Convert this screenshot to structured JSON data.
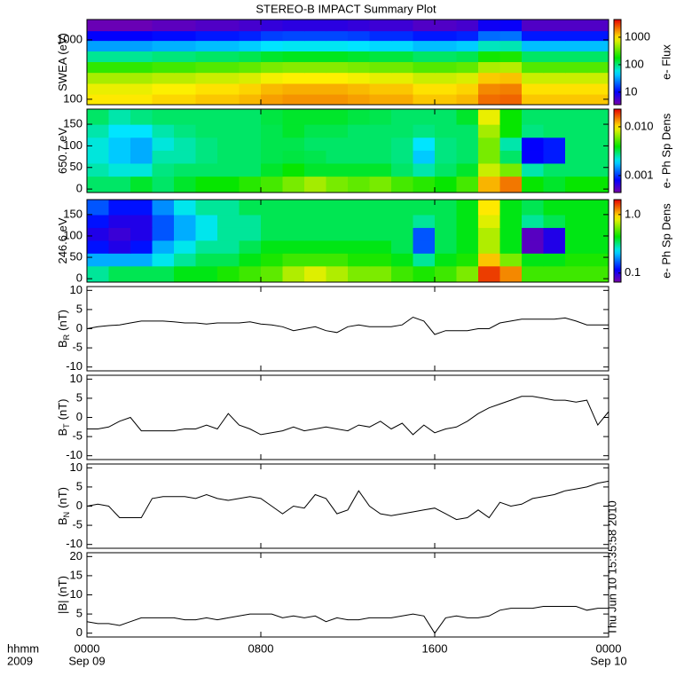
{
  "chart_data": [
    {
      "type": "heatmap",
      "title": "STEREO-B IMPACT Summary Plot",
      "ylabel": "SWEA (eV)",
      "ylog": true,
      "x": [
        0.5,
        1.5,
        2.5,
        3.5,
        4.5,
        5.5,
        6.5,
        7.5,
        8.5,
        9.5,
        10.5,
        11.5,
        12.5,
        13.5,
        14.5,
        15.5,
        16.5,
        17.5,
        18.5,
        19.5,
        20.5,
        21.5,
        22.5,
        23.5
      ],
      "y": [
        100,
        150,
        230,
        350,
        530,
        800,
        1200,
        1700
      ],
      "z": [
        [
          960,
          960,
          960,
          1080,
          1080,
          1200,
          1200,
          1320,
          1560,
          1680,
          1680,
          1680,
          1560,
          1440,
          1440,
          1200,
          1200,
          1320,
          2160,
          2280,
          1200,
          1200,
          1200,
          1200
        ],
        [
          800,
          800,
          800,
          900,
          900,
          1000,
          1000,
          1100,
          1300,
          1400,
          1400,
          1400,
          1300,
          1200,
          1200,
          1000,
          1000,
          1100,
          1800,
          1900,
          1000,
          1000,
          1000,
          1000
        ],
        [
          520,
          520,
          520,
          585,
          585,
          650,
          650,
          715,
          845,
          910,
          910,
          910,
          845,
          780,
          780,
          650,
          650,
          715,
          1170,
          1235,
          650,
          650,
          650,
          650
        ],
        [
          240,
          240,
          240,
          270,
          270,
          300,
          300,
          330,
          390,
          420,
          420,
          420,
          390,
          360,
          360,
          300,
          300,
          330,
          540,
          570,
          300,
          300,
          300,
          300
        ],
        [
          88,
          88,
          88,
          99,
          99,
          110,
          110,
          121,
          143,
          154,
          154,
          154,
          143,
          132,
          132,
          110,
          110,
          121,
          198,
          209,
          110,
          110,
          110,
          110
        ],
        [
          32,
          32,
          32,
          36,
          36,
          40,
          40,
          44,
          52,
          56,
          56,
          56,
          52,
          48,
          48,
          40,
          40,
          44,
          72,
          76,
          40,
          40,
          40,
          40
        ],
        [
          10,
          10,
          10,
          11,
          11,
          12,
          12,
          13,
          16,
          17,
          17,
          17,
          16,
          14,
          14,
          12,
          12,
          13,
          22,
          23,
          12,
          12,
          12,
          12
        ],
        [
          4,
          4,
          4,
          4.5,
          4.5,
          5,
          5,
          5.5,
          6.5,
          7,
          7,
          7,
          6.5,
          6,
          6,
          5,
          5,
          5.5,
          9,
          9.5,
          5,
          5,
          5,
          5
        ]
      ],
      "xlim": [
        0,
        24
      ],
      "xticks": [
        0,
        8,
        16,
        24
      ],
      "ylim": [
        81,
        2200
      ],
      "yticks": [
        100,
        1000
      ],
      "zlog": true,
      "zlim": [
        3.5,
        4400
      ],
      "zticks": [
        10,
        100,
        1000
      ],
      "zlabel": "e- Flux"
    },
    {
      "type": "heatmap",
      "ylabel": "650.7 eV",
      "x": [
        0.5,
        1.5,
        2.5,
        3.5,
        4.5,
        5.5,
        6.5,
        7.5,
        8.5,
        9.5,
        10.5,
        11.5,
        12.5,
        13.5,
        14.5,
        15.5,
        16.5,
        17.5,
        18.5,
        19.5,
        20.5,
        21.5,
        22.5,
        23.5
      ],
      "y": [
        15,
        45,
        75,
        105,
        135,
        165
      ],
      "z": [
        [
          0.003,
          0.003,
          0.0035,
          0.003,
          0.0035,
          0.004,
          0.004,
          0.0045,
          0.005,
          0.006,
          0.007,
          0.006,
          0.0055,
          0.006,
          0.005,
          0.0045,
          0.004,
          0.005,
          0.012,
          0.015,
          0.004,
          0.0035,
          0.004,
          0.004
        ],
        [
          0.0025,
          0.0022,
          0.0022,
          0.0028,
          0.003,
          0.003,
          0.003,
          0.003,
          0.0035,
          0.004,
          0.0035,
          0.0035,
          0.0035,
          0.0035,
          0.003,
          0.0025,
          0.003,
          0.0035,
          0.008,
          0.006,
          0.0025,
          0.003,
          0.003,
          0.003
        ],
        [
          0.0022,
          0.0018,
          0.0016,
          0.0025,
          0.0025,
          0.0028,
          0.003,
          0.003,
          0.0032,
          0.0033,
          0.0032,
          0.003,
          0.003,
          0.003,
          0.0028,
          0.0018,
          0.0028,
          0.003,
          0.006,
          0.003,
          0.0008,
          0.0009,
          0.003,
          0.003
        ],
        [
          0.0022,
          0.0018,
          0.0016,
          0.0022,
          0.0025,
          0.0028,
          0.003,
          0.003,
          0.0032,
          0.0032,
          0.003,
          0.003,
          0.003,
          0.003,
          0.0028,
          0.002,
          0.0028,
          0.003,
          0.006,
          0.0025,
          0.0008,
          0.0009,
          0.003,
          0.003
        ],
        [
          0.0025,
          0.002,
          0.002,
          0.0025,
          0.0028,
          0.003,
          0.003,
          0.003,
          0.0032,
          0.0035,
          0.0032,
          0.0032,
          0.003,
          0.003,
          0.003,
          0.0028,
          0.003,
          0.003,
          0.007,
          0.004,
          0.0028,
          0.003,
          0.003,
          0.003
        ],
        [
          0.003,
          0.0025,
          0.0028,
          0.003,
          0.003,
          0.003,
          0.003,
          0.003,
          0.0033,
          0.0035,
          0.0035,
          0.0035,
          0.0033,
          0.0032,
          0.003,
          0.003,
          0.003,
          0.0035,
          0.009,
          0.004,
          0.003,
          0.003,
          0.003,
          0.003
        ]
      ],
      "xlim": [
        0,
        24
      ],
      "xticks": [
        0,
        8,
        16,
        24
      ],
      "ylim": [
        -8,
        185
      ],
      "yticks": [
        0,
        50,
        100,
        150
      ],
      "zlog": true,
      "zlim": [
        0.00045,
        0.023
      ],
      "zticks": [
        0.001,
        {
          "value": 0.01,
          "label": "0.010"
        }
      ],
      "zlabel": "e- Ph Sp Dens"
    },
    {
      "type": "heatmap",
      "ylabel": "246.6 eV",
      "x": [
        0.5,
        1.5,
        2.5,
        3.5,
        4.5,
        5.5,
        6.5,
        7.5,
        8.5,
        9.5,
        10.5,
        11.5,
        12.5,
        13.5,
        14.5,
        15.5,
        16.5,
        17.5,
        18.5,
        19.5,
        20.5,
        21.5,
        22.5,
        23.5
      ],
      "y": [
        15,
        45,
        75,
        105,
        135,
        165
      ],
      "z": [
        [
          0.3,
          0.35,
          0.35,
          0.35,
          0.4,
          0.4,
          0.45,
          0.5,
          0.55,
          0.7,
          0.8,
          0.7,
          0.6,
          0.6,
          0.5,
          0.45,
          0.5,
          0.6,
          1.5,
          1.2,
          0.5,
          0.5,
          0.5,
          0.5
        ],
        [
          0.2,
          0.2,
          0.2,
          0.25,
          0.3,
          0.35,
          0.35,
          0.4,
          0.45,
          0.5,
          0.5,
          0.5,
          0.45,
          0.45,
          0.4,
          0.3,
          0.4,
          0.45,
          1.0,
          0.6,
          0.4,
          0.4,
          0.45,
          0.45
        ],
        [
          0.12,
          0.1,
          0.12,
          0.2,
          0.25,
          0.3,
          0.3,
          0.35,
          0.4,
          0.4,
          0.4,
          0.4,
          0.4,
          0.4,
          0.35,
          0.15,
          0.35,
          0.4,
          0.7,
          0.4,
          0.08,
          0.1,
          0.4,
          0.4
        ],
        [
          0.1,
          0.09,
          0.1,
          0.15,
          0.2,
          0.25,
          0.3,
          0.3,
          0.35,
          0.35,
          0.35,
          0.35,
          0.35,
          0.35,
          0.35,
          0.15,
          0.35,
          0.4,
          0.7,
          0.4,
          0.08,
          0.1,
          0.4,
          0.4
        ],
        [
          0.12,
          0.1,
          0.1,
          0.15,
          0.2,
          0.25,
          0.3,
          0.3,
          0.35,
          0.35,
          0.35,
          0.35,
          0.35,
          0.35,
          0.35,
          0.3,
          0.35,
          0.4,
          0.8,
          0.4,
          0.3,
          0.35,
          0.4,
          0.4
        ],
        [
          0.15,
          0.12,
          0.12,
          0.18,
          0.25,
          0.3,
          0.3,
          0.35,
          0.35,
          0.35,
          0.35,
          0.35,
          0.35,
          0.35,
          0.35,
          0.35,
          0.35,
          0.4,
          0.9,
          0.4,
          0.35,
          0.4,
          0.4,
          0.4
        ]
      ],
      "xlim": [
        0,
        24
      ],
      "xticks": [
        0,
        8,
        16,
        24
      ],
      "ylim": [
        -8,
        185
      ],
      "yticks": [
        0,
        50,
        100,
        150
      ],
      "zlog": true,
      "zlim": [
        0.07,
        1.8
      ],
      "zticks": [
        0.1,
        {
          "value": 1,
          "label": "1.0"
        }
      ],
      "zlabel": "e- Ph Sp Dens"
    },
    {
      "type": "line",
      "ylabel": "B",
      "ylabel_sub": "R",
      "ylabel_unit": "(nT)",
      "color": "#000000",
      "x": [
        0,
        0.5,
        1,
        1.5,
        2,
        2.5,
        3,
        3.5,
        4,
        4.5,
        5,
        5.5,
        6,
        6.5,
        7,
        7.5,
        8,
        8.5,
        9,
        9.5,
        10,
        10.5,
        11,
        11.5,
        12,
        12.5,
        13,
        13.5,
        14,
        14.5,
        15,
        15.5,
        16,
        16.5,
        17,
        17.5,
        18,
        18.5,
        19,
        19.5,
        20,
        20.5,
        21,
        21.5,
        22,
        22.5,
        23,
        23.5,
        24
      ],
      "values": [
        0,
        0.5,
        0.8,
        1,
        1.5,
        2,
        2,
        2,
        1.8,
        1.5,
        1.5,
        1.2,
        1.5,
        1.5,
        1.5,
        1.8,
        1.2,
        1,
        0.5,
        -0.5,
        0,
        0.5,
        -0.5,
        -1,
        0.5,
        1,
        0.5,
        0.5,
        0.5,
        1,
        3,
        2,
        -1.5,
        -0.5,
        -0.5,
        -0.5,
        0,
        0,
        1.5,
        2,
        2.5,
        2.5,
        2.5,
        2.5,
        2.8,
        2,
        1,
        1,
        1
      ],
      "xlim": [
        0,
        24
      ],
      "xticks": [
        0,
        8,
        16,
        24
      ],
      "ylim": [
        -11,
        11
      ],
      "yticks": [
        -10,
        -5,
        0,
        5,
        10
      ]
    },
    {
      "type": "line",
      "ylabel": "B",
      "ylabel_sub": "T",
      "ylabel_unit": "(nT)",
      "color": "#000000",
      "x": [
        0,
        0.5,
        1,
        1.5,
        2,
        2.5,
        3,
        3.5,
        4,
        4.5,
        5,
        5.5,
        6,
        6.5,
        7,
        7.5,
        8,
        8.5,
        9,
        9.5,
        10,
        10.5,
        11,
        11.5,
        12,
        12.5,
        13,
        13.5,
        14,
        14.5,
        15,
        15.5,
        16,
        16.5,
        17,
        17.5,
        18,
        18.5,
        19,
        19.5,
        20,
        20.5,
        21,
        21.5,
        22,
        22.5,
        23,
        23.5,
        24
      ],
      "values": [
        -3,
        -3,
        -2.5,
        -1,
        0,
        -3.5,
        -3.5,
        -3.5,
        -3.5,
        -3,
        -3,
        -2,
        -3,
        1,
        -2,
        -3,
        -4.5,
        -4,
        -3.5,
        -2.5,
        -3.5,
        -3,
        -2.5,
        -3,
        -3.5,
        -2,
        -2.5,
        -1,
        -3,
        -1.5,
        -4.5,
        -2,
        -4,
        -3,
        -2.5,
        -1,
        1,
        2.5,
        3.5,
        4.5,
        5.5,
        5.5,
        5,
        4.5,
        4.5,
        4,
        4.5,
        -2,
        1.5
      ],
      "xlim": [
        0,
        24
      ],
      "xticks": [
        0,
        8,
        16,
        24
      ],
      "ylim": [
        -11,
        11
      ],
      "yticks": [
        -10,
        -5,
        0,
        5,
        10
      ]
    },
    {
      "type": "line",
      "ylabel": "B",
      "ylabel_sub": "N",
      "ylabel_unit": "(nT)",
      "color": "#000000",
      "x": [
        0,
        0.5,
        1,
        1.5,
        2,
        2.5,
        3,
        3.5,
        4,
        4.5,
        5,
        5.5,
        6,
        6.5,
        7,
        7.5,
        8,
        8.5,
        9,
        9.5,
        10,
        10.5,
        11,
        11.5,
        12,
        12.5,
        13,
        13.5,
        14,
        14.5,
        15,
        15.5,
        16,
        16.5,
        17,
        17.5,
        18,
        18.5,
        19,
        19.5,
        20,
        20.5,
        21,
        21.5,
        22,
        22.5,
        23,
        23.5,
        24
      ],
      "values": [
        0,
        0.5,
        0,
        -3,
        -3,
        -3,
        2,
        2.5,
        2.5,
        2.5,
        2,
        3,
        2,
        1.5,
        2,
        2.5,
        2,
        0,
        -2,
        0,
        -0.5,
        3,
        2,
        -2,
        -1,
        4,
        0,
        -2,
        -2.5,
        -2,
        -1.5,
        -1,
        -0.5,
        -2,
        -3.5,
        -3,
        -1,
        -3,
        1,
        0,
        0.5,
        2,
        2.5,
        3,
        4,
        4.5,
        5,
        6,
        6.5
      ],
      "xlim": [
        0,
        24
      ],
      "xticks": [
        0,
        8,
        16,
        24
      ],
      "ylim": [
        -11,
        11
      ],
      "yticks": [
        -10,
        -5,
        0,
        5,
        10
      ]
    },
    {
      "type": "line",
      "ylabel": "|B| (nT)",
      "color": "#000000",
      "x": [
        0,
        0.5,
        1,
        1.5,
        2,
        2.5,
        3,
        3.5,
        4,
        4.5,
        5,
        5.5,
        6,
        6.5,
        7,
        7.5,
        8,
        8.5,
        9,
        9.5,
        10,
        10.5,
        11,
        11.5,
        12,
        12.5,
        13,
        13.5,
        14,
        14.5,
        15,
        15.5,
        16,
        16.5,
        17,
        17.5,
        18,
        18.5,
        19,
        19.5,
        20,
        20.5,
        21,
        21.5,
        22,
        22.5,
        23,
        23.5,
        24
      ],
      "values": [
        3,
        2.5,
        2.5,
        2,
        3,
        4,
        4,
        4,
        4,
        3.5,
        3.5,
        4,
        3.5,
        4,
        4.5,
        5,
        5,
        5,
        4,
        4.5,
        4,
        4.5,
        3,
        4,
        3.5,
        3.5,
        4,
        4,
        4,
        4.5,
        5,
        4.5,
        0,
        4,
        4.5,
        4,
        4,
        4.5,
        6,
        6.5,
        6.5,
        6.5,
        7,
        7,
        7,
        7,
        6,
        6.5,
        6.5
      ],
      "xlim": [
        0,
        24
      ],
      "xticks": [
        {
          "value": 0,
          "label": "0000"
        },
        {
          "value": 8,
          "label": "0800"
        },
        {
          "value": 16,
          "label": "1600"
        },
        {
          "value": 24,
          "label": "0000"
        }
      ],
      "x_date_labels": [
        {
          "value": 0,
          "label": "Sep 09"
        },
        {
          "value": 24,
          "label": "Sep 10"
        }
      ],
      "xlabel": "hhmm",
      "xlabel2": "2009",
      "annotation": "Thu Jun 10 15:35:58 2010",
      "ylim": [
        -1,
        21
      ],
      "yticks": [
        0,
        5,
        10,
        15,
        20
      ]
    }
  ]
}
